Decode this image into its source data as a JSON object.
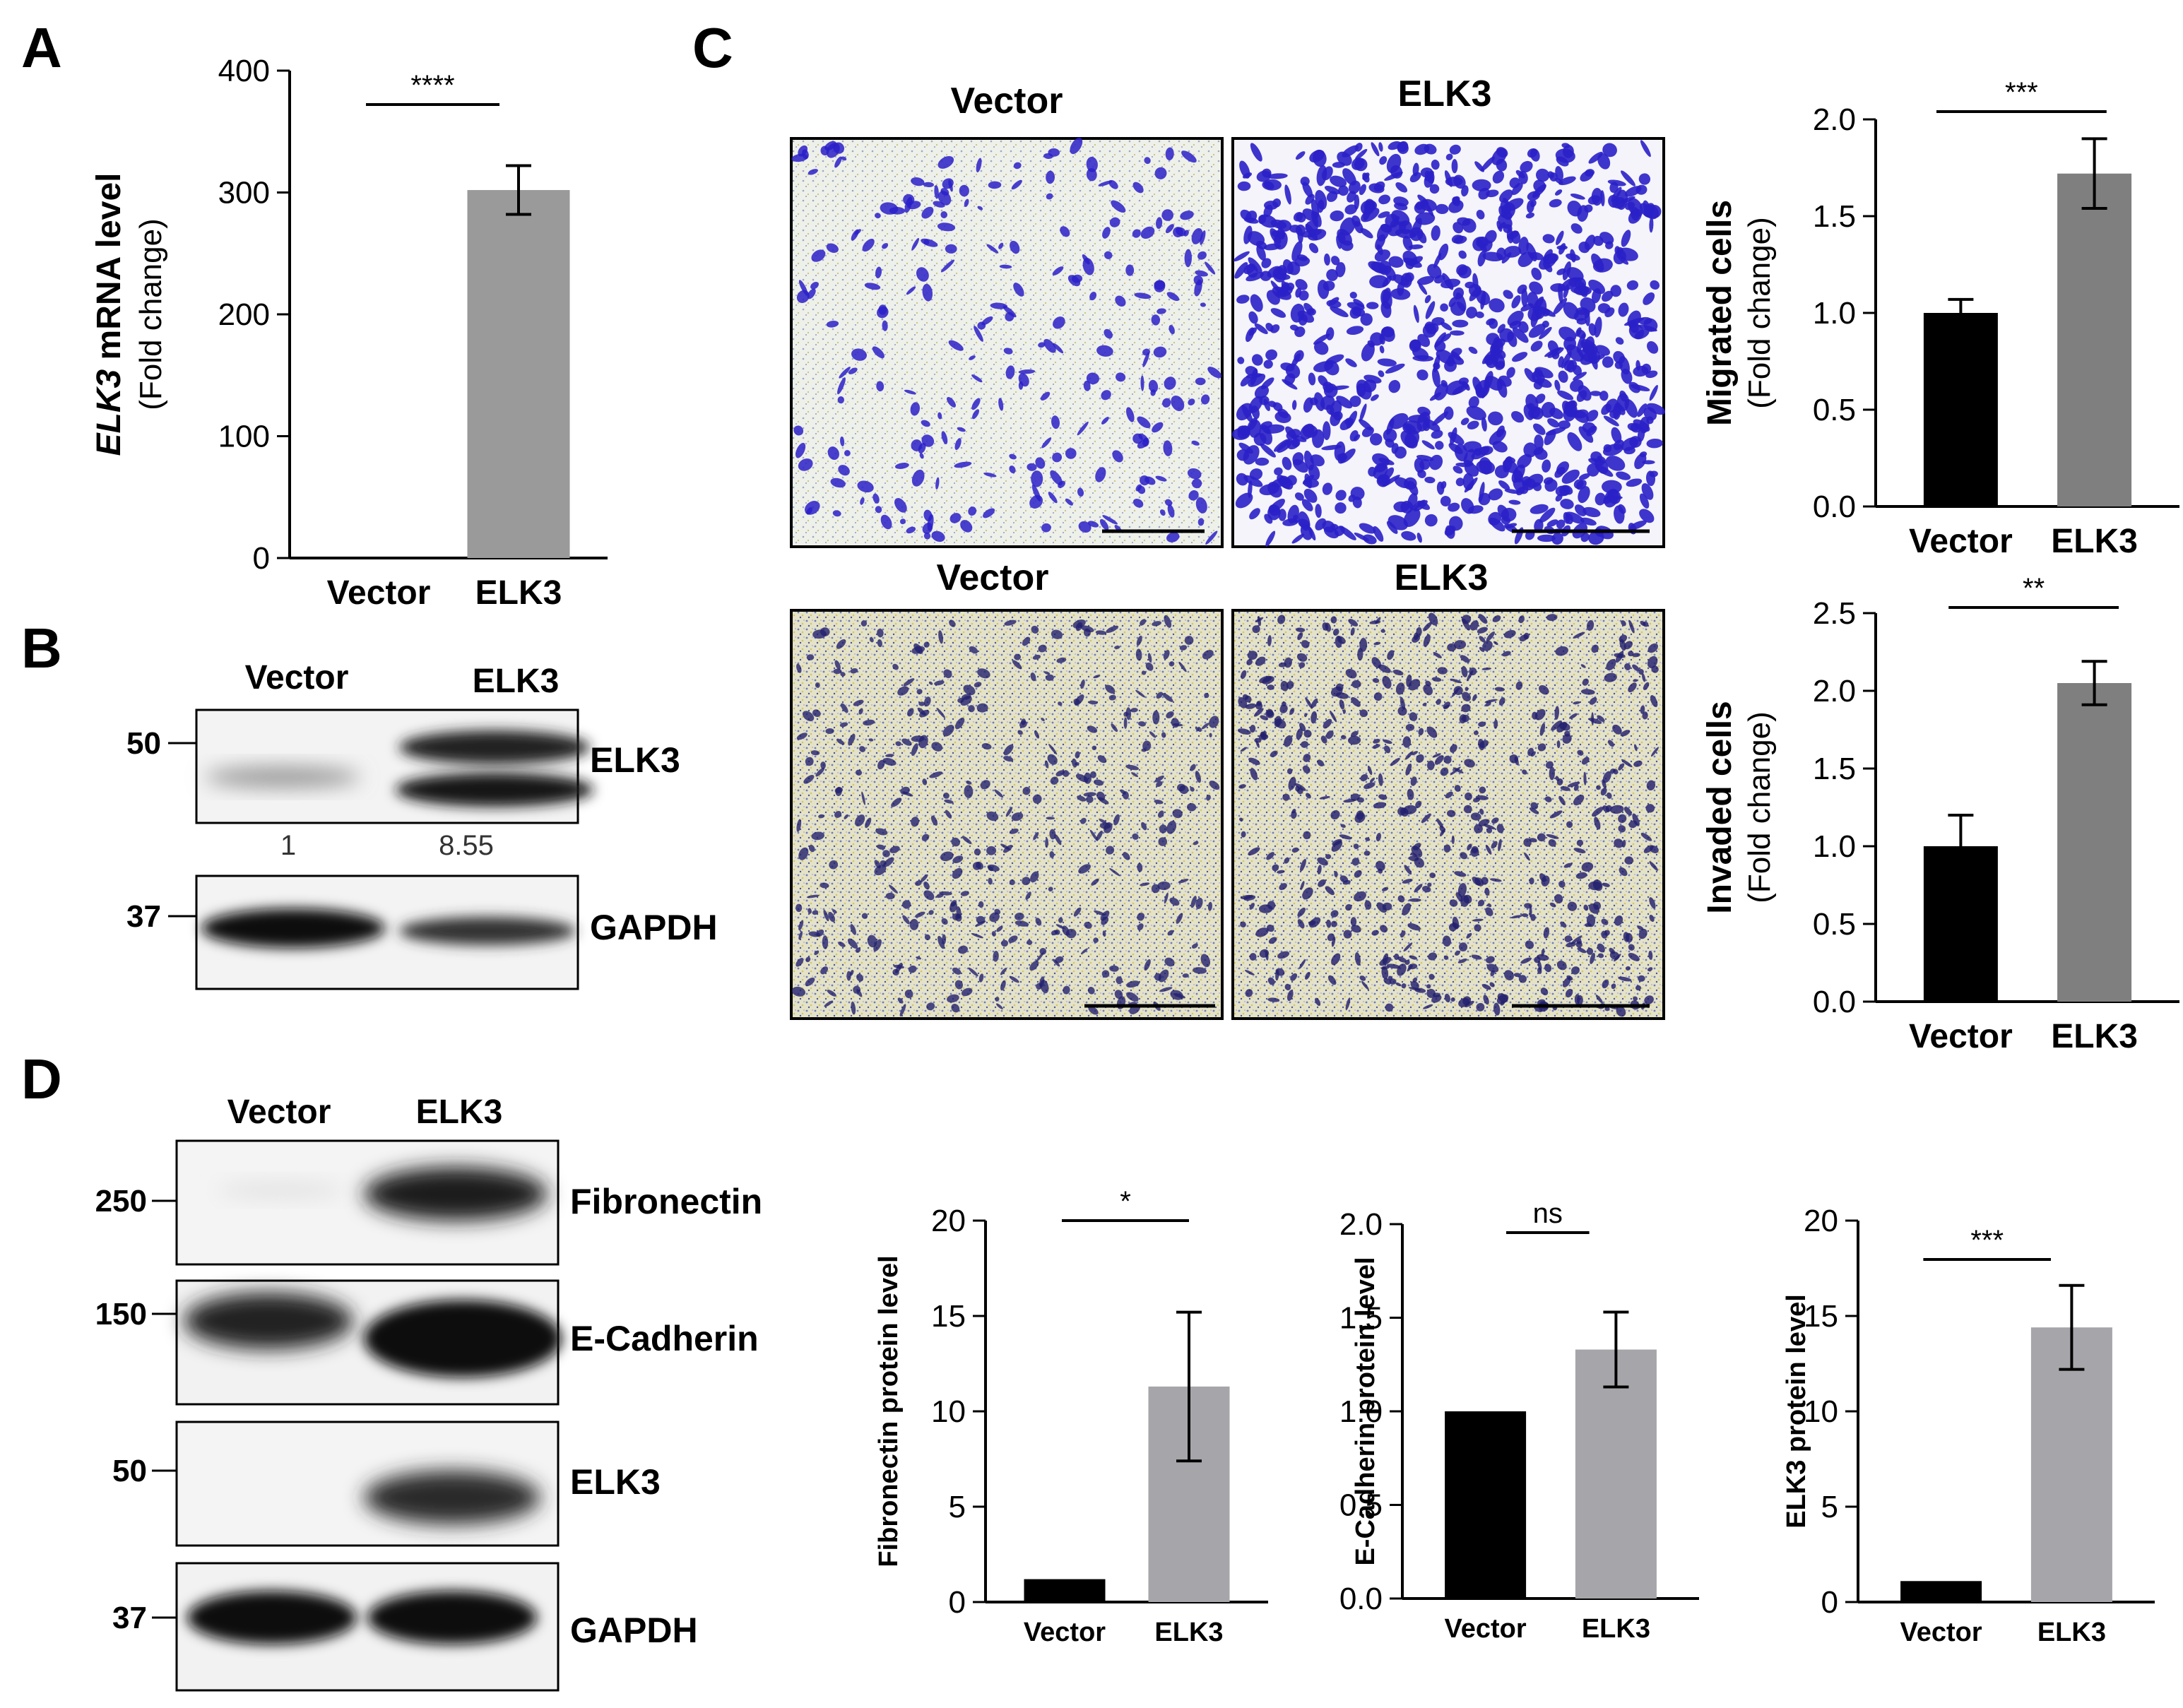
{
  "panel_labels": {
    "a": "A",
    "b": "B",
    "c": "C",
    "d": "D"
  },
  "colors": {
    "vector_bar": "#000000",
    "elk3_bar_dark": "#7f7f7f",
    "elk3_bar_light": "#a6a6aa",
    "stain": "#2a20c8"
  },
  "blots": {
    "b": {
      "lanes": [
        "Vector",
        "ELK3"
      ],
      "bands": [
        {
          "name": "ELK3",
          "marker": "50",
          "quant": [
            "1",
            "8.55"
          ]
        },
        {
          "name": "GAPDH",
          "marker": "37"
        }
      ]
    },
    "d": {
      "lanes": [
        "Vector",
        "ELK3"
      ],
      "bands": [
        {
          "name": "Fibronectin",
          "marker": "250"
        },
        {
          "name": "E-Cadherin",
          "marker": "150"
        },
        {
          "name": "ELK3",
          "marker": "50"
        },
        {
          "name": "GAPDH",
          "marker": "37"
        }
      ]
    }
  },
  "micrographs": {
    "top": [
      "Vector",
      "ELK3"
    ],
    "bottom": [
      "Vector",
      "ELK3"
    ]
  },
  "chart_data": [
    {
      "id": "a",
      "type": "bar",
      "categories": [
        "Vector",
        "ELK3"
      ],
      "values": [
        1,
        302
      ],
      "errors": [
        0,
        20
      ],
      "ylabel_italic": "ELK3",
      "ylabel_rest": " mRNA level",
      "ylabel_sub": "(Fold change)",
      "ylim": [
        0,
        400
      ],
      "yticks": [
        "0",
        "100",
        "200",
        "300",
        "400"
      ],
      "significance": "****"
    },
    {
      "id": "c1",
      "type": "bar",
      "categories": [
        "Vector",
        "ELK3"
      ],
      "values": [
        1.0,
        1.72
      ],
      "errors": [
        0.07,
        0.18
      ],
      "ylabel": "Migrated cells",
      "ylabel_sub": "(Fold change)",
      "ylim": [
        0,
        2.0
      ],
      "yticks": [
        "0.0",
        "0.5",
        "1.0",
        "1.5",
        "2.0"
      ],
      "significance": "***"
    },
    {
      "id": "c2",
      "type": "bar",
      "categories": [
        "Vector",
        "ELK3"
      ],
      "values": [
        1.0,
        2.05
      ],
      "errors": [
        0.2,
        0.14
      ],
      "ylabel": "Invaded cells",
      "ylabel_sub": "(Fold change)",
      "ylim": [
        0,
        2.5
      ],
      "yticks": [
        "0.0",
        "0.5",
        "1.0",
        "1.5",
        "2.0",
        "2.5"
      ],
      "significance": "**"
    },
    {
      "id": "d1",
      "type": "bar",
      "categories": [
        "Vector",
        "ELK3"
      ],
      "values": [
        1.2,
        11.3
      ],
      "errors": [
        0,
        3.9
      ],
      "ylabel": "Fibronectin  protein level",
      "ylim": [
        0,
        20
      ],
      "yticks": [
        "0",
        "5",
        "10",
        "15",
        "20"
      ],
      "significance": "*"
    },
    {
      "id": "d2",
      "type": "bar",
      "categories": [
        "Vector",
        "ELK3"
      ],
      "values": [
        1.0,
        1.33
      ],
      "errors": [
        0,
        0.2
      ],
      "ylabel": "E-Cadherin protein level",
      "ylim": [
        0,
        2.0
      ],
      "yticks": [
        "0.0",
        "0.5",
        "1.0",
        "1.5",
        "2.0"
      ],
      "significance": "ns"
    },
    {
      "id": "d3",
      "type": "bar",
      "categories": [
        "Vector",
        "ELK3"
      ],
      "values": [
        1.1,
        14.4
      ],
      "errors": [
        0,
        2.2
      ],
      "ylabel": "ELK3 protein level",
      "ylim": [
        0,
        20
      ],
      "yticks": [
        "0",
        "5",
        "10",
        "15",
        "20"
      ],
      "significance": "***"
    }
  ]
}
